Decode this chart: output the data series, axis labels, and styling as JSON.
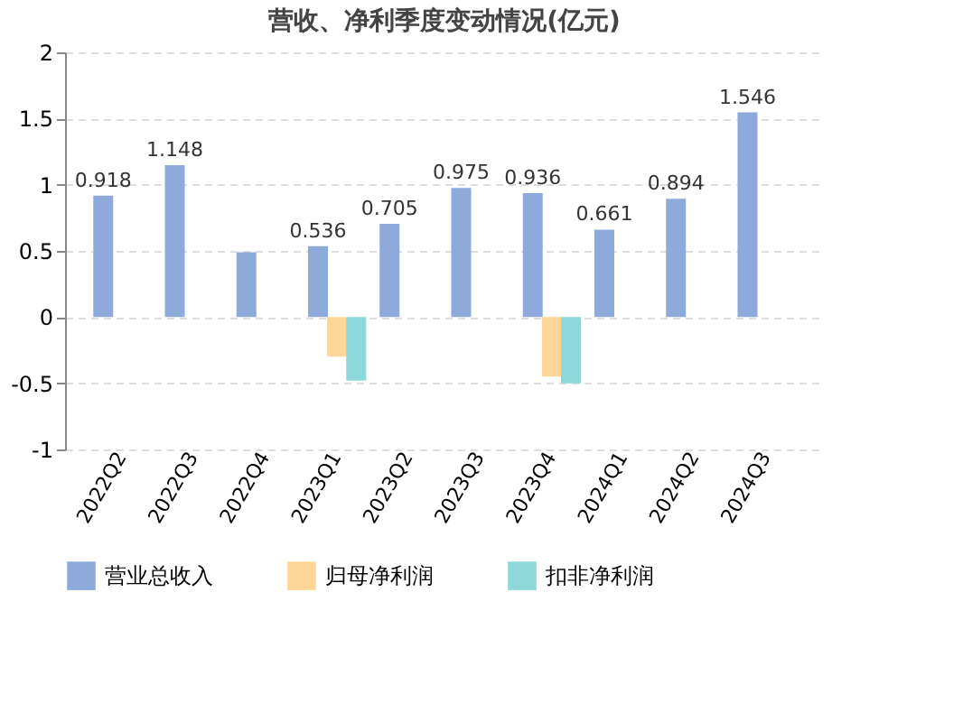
{
  "chart_data": {
    "type": "bar",
    "title": "营收、净利季度变动情况(亿元)",
    "categories": [
      "2022Q2",
      "2022Q3",
      "2022Q4",
      "2023Q1",
      "2023Q2",
      "2023Q3",
      "2023Q4",
      "2024Q1",
      "2024Q2",
      "2024Q3"
    ],
    "series": [
      {
        "name": "营业总收入",
        "color": "#8eaadb",
        "values": [
          0.918,
          1.148,
          0.49,
          0.536,
          0.705,
          0.975,
          0.936,
          0.661,
          0.894,
          1.546
        ],
        "value_labels": [
          "0.918",
          "1.148",
          null,
          "0.536",
          "0.705",
          "0.975",
          "0.936",
          "0.661",
          "0.894",
          "1.546"
        ]
      },
      {
        "name": "归母净利润",
        "color": "#ffd699",
        "values": [
          null,
          null,
          null,
          -0.3,
          null,
          null,
          -0.45,
          null,
          null,
          null
        ]
      },
      {
        "name": "扣非净利润",
        "color": "#8ed8dc",
        "values": [
          null,
          null,
          null,
          -0.48,
          null,
          null,
          -0.5,
          null,
          null,
          null
        ]
      }
    ],
    "ylim": [
      -1,
      2
    ],
    "yticks": [
      -1,
      -0.5,
      0,
      0.5,
      1,
      1.5,
      2
    ],
    "grid": "y",
    "legend": "bottom"
  }
}
